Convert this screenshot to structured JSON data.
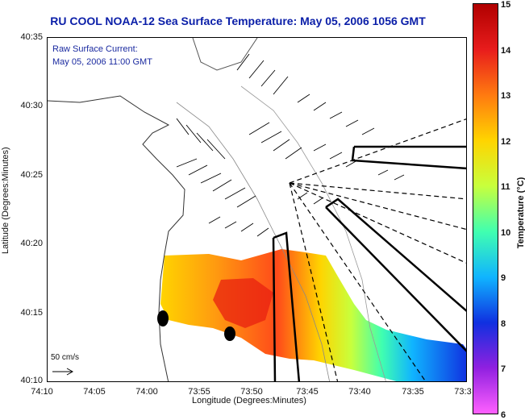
{
  "title": "RU COOL  NOAA-12  Sea Surface Temperature:  May 05, 2006 1056 GMT",
  "legend": {
    "line1": "Raw Surface Current:",
    "line2": "May 05, 2006 11:00 GMT"
  },
  "axes": {
    "xlabel": "Longitude (Degrees:Minutes)",
    "ylabel": "Latitude (Degrees:Minutes)",
    "yticks": [
      "40:35",
      "40:30",
      "40:25",
      "40:20",
      "40:15",
      "40:10"
    ],
    "xticks": [
      "74:10",
      "74:05",
      "74:00",
      "73:55",
      "73:50",
      "73:45",
      "73:40",
      "73:35",
      "73:3"
    ]
  },
  "scale_label": "50 cm/s",
  "colorbar": {
    "label": "Temperature (°C)",
    "ticks": [
      "15",
      "14",
      "13",
      "12",
      "11",
      "10",
      "9",
      "8",
      "7",
      "6"
    ],
    "colors": [
      "#b00000",
      "#e81c1c",
      "#ff7a10",
      "#ffd400",
      "#c8ff3c",
      "#40ffb0",
      "#10b4ff",
      "#1030e0",
      "#9020e0",
      "#ff60ff"
    ]
  }
}
